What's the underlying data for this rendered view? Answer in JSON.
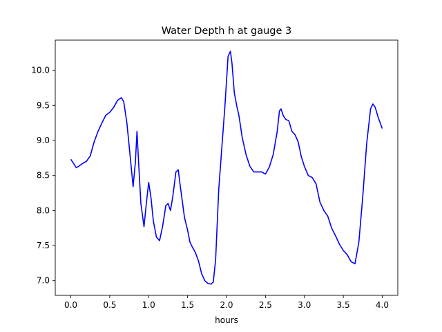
{
  "chart_data": {
    "type": "line",
    "title": "Water Depth h at gauge 3",
    "xlabel": "hours",
    "ylabel": "",
    "xlim": [
      -0.2,
      4.2
    ],
    "ylim": [
      6.79,
      10.43
    ],
    "xticks": [
      0.0,
      0.5,
      1.0,
      1.5,
      2.0,
      2.5,
      3.0,
      3.5,
      4.0
    ],
    "xtick_labels": [
      "0.0",
      "0.5",
      "1.0",
      "1.5",
      "2.0",
      "2.5",
      "3.0",
      "3.5",
      "4.0"
    ],
    "yticks": [
      7.0,
      7.5,
      8.0,
      8.5,
      9.0,
      9.5,
      10.0
    ],
    "ytick_labels": [
      "7.0",
      "7.5",
      "8.0",
      "8.5",
      "9.0",
      "9.5",
      "10.0"
    ],
    "grid": false,
    "series": [
      {
        "color": "#0000ff",
        "x": [
          0.0,
          0.03,
          0.07,
          0.1,
          0.15,
          0.2,
          0.25,
          0.3,
          0.35,
          0.4,
          0.45,
          0.5,
          0.55,
          0.6,
          0.65,
          0.68,
          0.72,
          0.76,
          0.8,
          0.83,
          0.85,
          0.87,
          0.9,
          0.94,
          0.97,
          1.0,
          1.03,
          1.06,
          1.1,
          1.14,
          1.18,
          1.22,
          1.25,
          1.28,
          1.31,
          1.35,
          1.38,
          1.4,
          1.43,
          1.46,
          1.5,
          1.53,
          1.56,
          1.6,
          1.64,
          1.68,
          1.72,
          1.76,
          1.8,
          1.83,
          1.86,
          1.9,
          1.94,
          1.98,
          2.02,
          2.05,
          2.07,
          2.1,
          2.13,
          2.16,
          2.2,
          2.25,
          2.3,
          2.35,
          2.4,
          2.45,
          2.5,
          2.55,
          2.6,
          2.65,
          2.68,
          2.7,
          2.73,
          2.76,
          2.8,
          2.84,
          2.88,
          2.92,
          2.96,
          3.0,
          3.05,
          3.1,
          3.15,
          3.2,
          3.25,
          3.3,
          3.35,
          3.4,
          3.45,
          3.5,
          3.55,
          3.6,
          3.65,
          3.7,
          3.75,
          3.8,
          3.85,
          3.88,
          3.91,
          3.95,
          4.0
        ],
        "y": [
          8.73,
          8.68,
          8.61,
          8.63,
          8.67,
          8.7,
          8.78,
          8.98,
          9.13,
          9.25,
          9.36,
          9.4,
          9.47,
          9.57,
          9.61,
          9.55,
          9.25,
          8.8,
          8.34,
          8.7,
          9.13,
          8.7,
          8.1,
          7.77,
          8.1,
          8.4,
          8.18,
          7.85,
          7.62,
          7.57,
          7.78,
          8.07,
          8.1,
          8.0,
          8.2,
          8.55,
          8.58,
          8.4,
          8.15,
          7.9,
          7.72,
          7.55,
          7.48,
          7.4,
          7.28,
          7.1,
          7.0,
          6.96,
          6.95,
          6.98,
          7.3,
          8.3,
          8.9,
          9.5,
          10.2,
          10.27,
          10.1,
          9.68,
          9.5,
          9.35,
          9.05,
          8.8,
          8.63,
          8.55,
          8.55,
          8.55,
          8.52,
          8.62,
          8.8,
          9.12,
          9.42,
          9.45,
          9.35,
          9.3,
          9.28,
          9.13,
          9.08,
          8.98,
          8.77,
          8.63,
          8.5,
          8.47,
          8.38,
          8.12,
          8.0,
          7.92,
          7.75,
          7.64,
          7.52,
          7.43,
          7.37,
          7.27,
          7.24,
          7.55,
          8.2,
          8.95,
          9.45,
          9.52,
          9.47,
          9.32,
          9.17
        ]
      }
    ]
  }
}
